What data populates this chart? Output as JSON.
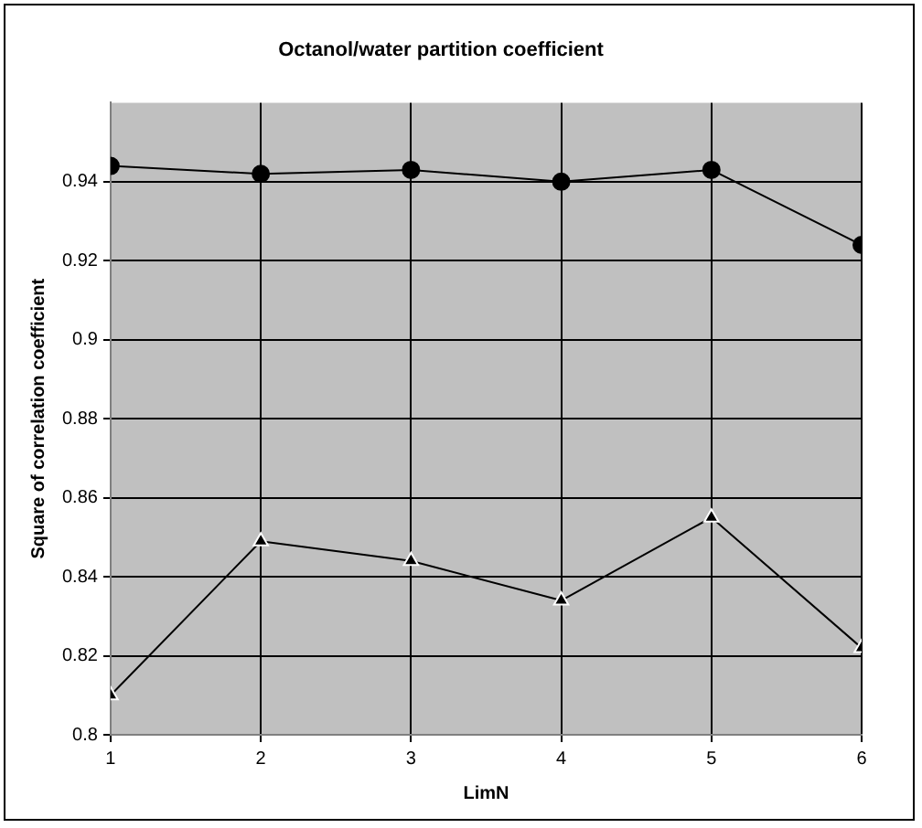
{
  "chart_data": {
    "type": "line",
    "title": "Octanol/water partition coefficient",
    "xlabel": "LimN",
    "ylabel": "Square of correlation coefficient",
    "x": [
      1,
      2,
      3,
      4,
      5,
      6
    ],
    "xlim": [
      1,
      6
    ],
    "xticks": [
      1,
      2,
      3,
      4,
      5,
      6
    ],
    "ylim": [
      0.8,
      0.96
    ],
    "yticks": [
      0.8,
      0.82,
      0.84,
      0.86,
      0.88,
      0.9,
      0.92,
      0.94
    ],
    "grid": true,
    "legend": false,
    "line_style": "solid",
    "series": [
      {
        "color": "#000000",
        "marker": "circle",
        "values": [
          0.944,
          0.942,
          0.943,
          0.94,
          0.943,
          0.924
        ]
      },
      {
        "color": "#000000",
        "marker": "triangle",
        "values": [
          0.81,
          0.849,
          0.844,
          0.834,
          0.855,
          0.822
        ]
      }
    ]
  }
}
